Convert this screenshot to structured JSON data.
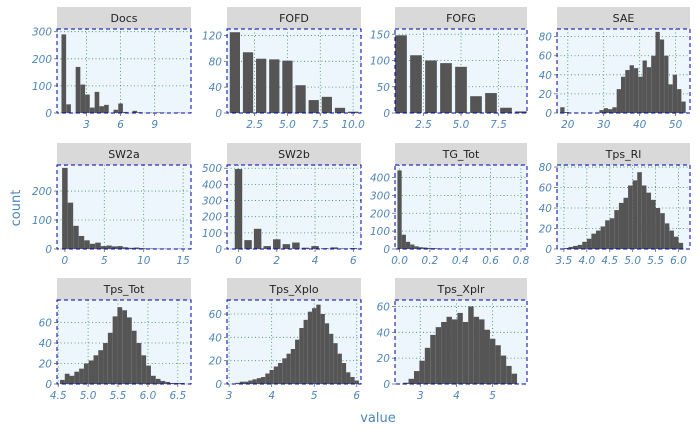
{
  "chart_data": {
    "type": "bar",
    "subtype": "faceted-histogram",
    "xlabel": "value",
    "ylabel": "count",
    "grid": "dotted",
    "colors": {
      "bar": "#555555",
      "panel_bg": "#eef6fd",
      "panel_border": "#0000b0",
      "strip_bg": "#d9d9d9",
      "grid": "#3a8a5a",
      "axis_text": "#4f86b8"
    },
    "panels": [
      {
        "name": "Docs",
        "xlim": [
          0.4,
          12.2
        ],
        "ylim": [
          0,
          310
        ],
        "xticks": [
          {
            "value": 3,
            "label": "3"
          },
          {
            "value": 6,
            "label": "6"
          },
          {
            "value": 9,
            "label": "9"
          }
        ],
        "yticks": [
          {
            "value": 0,
            "label": "0"
          },
          {
            "value": 100,
            "label": "100"
          },
          {
            "value": 200,
            "label": "200"
          },
          {
            "value": 300,
            "label": "300"
          }
        ],
        "x": [
          1.0,
          1.42,
          2.25,
          2.67,
          3.08,
          3.5,
          3.92,
          4.33,
          4.75,
          5.58,
          6.0,
          6.42,
          7.25,
          7.67,
          8.5,
          9.33,
          9.75,
          11.0
        ],
        "counts": [
          290,
          32,
          170,
          105,
          68,
          20,
          78,
          25,
          30,
          12,
          35,
          4,
          8,
          3,
          2,
          2,
          1,
          2
        ]
      },
      {
        "name": "FOFD",
        "xlim": [
          0.4,
          10.6
        ],
        "ylim": [
          0,
          130
        ],
        "xticks": [
          {
            "value": 2.5,
            "label": "2.5"
          },
          {
            "value": 5.0,
            "label": "5.0"
          },
          {
            "value": 7.5,
            "label": "7.5"
          },
          {
            "value": 10.0,
            "label": "10.0"
          }
        ],
        "yticks": [
          {
            "value": 0,
            "label": "0"
          },
          {
            "value": 40,
            "label": "40"
          },
          {
            "value": 80,
            "label": "80"
          },
          {
            "value": 120,
            "label": "120"
          }
        ],
        "x": [
          1,
          2,
          3,
          4,
          5,
          6,
          7,
          8,
          9,
          10
        ],
        "counts": [
          125,
          94,
          84,
          83,
          81,
          43,
          20,
          25,
          8,
          2
        ]
      },
      {
        "name": "FOFG",
        "xlim": [
          0.6,
          9.4
        ],
        "ylim": [
          0,
          160
        ],
        "xticks": [
          {
            "value": 2.5,
            "label": "2.5"
          },
          {
            "value": 5.0,
            "label": "5.0"
          },
          {
            "value": 7.5,
            "label": "7.5"
          }
        ],
        "yticks": [
          {
            "value": 0,
            "label": "0"
          },
          {
            "value": 50,
            "label": "50"
          },
          {
            "value": 100,
            "label": "100"
          },
          {
            "value": 150,
            "label": "150"
          }
        ],
        "x": [
          1,
          2,
          3,
          4,
          5,
          6,
          7,
          8,
          9
        ],
        "counts": [
          148,
          110,
          100,
          95,
          88,
          32,
          38,
          10,
          3
        ]
      },
      {
        "name": "SAE",
        "xlim": [
          17,
          54
        ],
        "ylim": [
          0,
          88
        ],
        "xticks": [
          {
            "value": 20,
            "label": "20"
          },
          {
            "value": 30,
            "label": "30"
          },
          {
            "value": 40,
            "label": "40"
          },
          {
            "value": 50,
            "label": "50"
          }
        ],
        "yticks": [
          {
            "value": 0,
            "label": "0"
          },
          {
            "value": 20,
            "label": "20"
          },
          {
            "value": 40,
            "label": "40"
          },
          {
            "value": 60,
            "label": "60"
          },
          {
            "value": 80,
            "label": "80"
          }
        ],
        "x": [
          18.5,
          19.7,
          29.4,
          30.6,
          31.8,
          33.0,
          34.2,
          35.4,
          36.6,
          37.8,
          39.0,
          40.2,
          41.4,
          42.6,
          43.8,
          45.0,
          46.2,
          47.4,
          48.6,
          49.8,
          51.0,
          52.2
        ],
        "counts": [
          6,
          1,
          3,
          5,
          4,
          6,
          25,
          38,
          45,
          50,
          47,
          38,
          55,
          48,
          60,
          85,
          77,
          60,
          30,
          40,
          25,
          12
        ]
      },
      {
        "name": "SW2a",
        "xlim": [
          -1,
          16
        ],
        "ylim": [
          0,
          290
        ],
        "xticks": [
          {
            "value": 0,
            "label": "0"
          },
          {
            "value": 5,
            "label": "5"
          },
          {
            "value": 10,
            "label": "10"
          },
          {
            "value": 15,
            "label": "15"
          }
        ],
        "yticks": [
          {
            "value": 0,
            "label": "0"
          },
          {
            "value": 100,
            "label": "100"
          },
          {
            "value": 200,
            "label": "200"
          }
        ],
        "x": [
          0.0,
          0.7,
          1.4,
          2.1,
          2.8,
          3.5,
          4.2,
          4.9,
          5.6,
          6.3,
          7.0,
          7.7,
          8.4,
          9.1,
          9.8,
          10.5,
          11.2,
          11.9,
          12.6,
          14.7
        ],
        "counts": [
          280,
          160,
          80,
          45,
          30,
          18,
          22,
          10,
          12,
          9,
          10,
          6,
          4,
          5,
          3,
          2,
          2,
          1,
          1,
          1
        ]
      },
      {
        "name": "SW2b",
        "xlim": [
          -0.6,
          6.4
        ],
        "ylim": [
          0,
          520
        ],
        "xticks": [
          {
            "value": 0,
            "label": "0"
          },
          {
            "value": 2,
            "label": "2"
          },
          {
            "value": 4,
            "label": "4"
          },
          {
            "value": 6,
            "label": "6"
          }
        ],
        "yticks": [
          {
            "value": 0,
            "label": "0"
          },
          {
            "value": 100,
            "label": "100"
          },
          {
            "value": 200,
            "label": "200"
          },
          {
            "value": 300,
            "label": "300"
          },
          {
            "value": 400,
            "label": "400"
          },
          {
            "value": 500,
            "label": "500"
          }
        ],
        "x": [
          0.0,
          0.5,
          1.0,
          1.5,
          2.0,
          2.5,
          3.0,
          3.5,
          4.0,
          4.5,
          5.0,
          5.5,
          6.0
        ],
        "counts": [
          495,
          55,
          125,
          18,
          60,
          30,
          40,
          8,
          18,
          5,
          10,
          4,
          6
        ]
      },
      {
        "name": "TG_Tot",
        "xlim": [
          -0.03,
          0.84
        ],
        "ylim": [
          0,
          470
        ],
        "xticks": [
          {
            "value": 0.0,
            "label": "0.0"
          },
          {
            "value": 0.2,
            "label": "0.2"
          },
          {
            "value": 0.4,
            "label": "0.4"
          },
          {
            "value": 0.6,
            "label": "0.6"
          },
          {
            "value": 0.8,
            "label": "0.8"
          }
        ],
        "yticks": [
          {
            "value": 0,
            "label": "0"
          },
          {
            "value": 100,
            "label": "100"
          },
          {
            "value": 200,
            "label": "200"
          },
          {
            "value": 300,
            "label": "300"
          },
          {
            "value": 400,
            "label": "400"
          }
        ],
        "x": [
          0.0,
          0.028,
          0.056,
          0.084,
          0.112,
          0.14,
          0.168,
          0.196,
          0.224,
          0.252,
          0.28,
          0.31,
          0.36,
          0.42,
          0.48,
          0.55,
          0.62,
          0.7,
          0.8
        ],
        "counts": [
          440,
          80,
          40,
          25,
          15,
          10,
          8,
          6,
          5,
          4,
          3,
          3,
          2,
          2,
          1,
          1,
          1,
          1,
          1
        ]
      },
      {
        "name": "Tps_Rl",
        "xlim": [
          3.35,
          6.25
        ],
        "ylim": [
          0,
          82
        ],
        "xticks": [
          {
            "value": 3.5,
            "label": "3.5"
          },
          {
            "value": 4.0,
            "label": "4.0"
          },
          {
            "value": 4.5,
            "label": "4.5"
          },
          {
            "value": 5.0,
            "label": "5.0"
          },
          {
            "value": 5.5,
            "label": "5.5"
          },
          {
            "value": 6.0,
            "label": "6.0"
          }
        ],
        "yticks": [
          {
            "value": 0,
            "label": "0"
          },
          {
            "value": 20,
            "label": "20"
          },
          {
            "value": 40,
            "label": "40"
          },
          {
            "value": 60,
            "label": "60"
          },
          {
            "value": 80,
            "label": "80"
          }
        ],
        "x": [
          3.55,
          3.65,
          3.75,
          3.85,
          3.95,
          4.05,
          4.15,
          4.25,
          4.35,
          4.45,
          4.55,
          4.65,
          4.75,
          4.85,
          4.95,
          5.05,
          5.15,
          5.25,
          5.35,
          5.45,
          5.55,
          5.65,
          5.75,
          5.85,
          5.95,
          6.05
        ],
        "counts": [
          1,
          2,
          3,
          4,
          7,
          10,
          15,
          18,
          22,
          28,
          30,
          38,
          45,
          50,
          62,
          67,
          75,
          62,
          55,
          48,
          40,
          35,
          25,
          18,
          12,
          6
        ]
      },
      {
        "name": "Tps_Tot",
        "xlim": [
          4.48,
          6.72
        ],
        "ylim": [
          0,
          82
        ],
        "xticks": [
          {
            "value": 4.5,
            "label": "4.5"
          },
          {
            "value": 5.0,
            "label": "5.0"
          },
          {
            "value": 5.5,
            "label": "5.5"
          },
          {
            "value": 6.0,
            "label": "6.0"
          },
          {
            "value": 6.5,
            "label": "6.5"
          }
        ],
        "yticks": [
          {
            "value": 0,
            "label": "0"
          },
          {
            "value": 20,
            "label": "20"
          },
          {
            "value": 40,
            "label": "40"
          },
          {
            "value": 60,
            "label": "60"
          }
        ],
        "x": [
          4.57,
          4.65,
          4.73,
          4.81,
          4.89,
          4.97,
          5.05,
          5.13,
          5.21,
          5.29,
          5.37,
          5.45,
          5.53,
          5.61,
          5.69,
          5.77,
          5.85,
          5.93,
          6.01,
          6.09,
          6.17,
          6.25,
          6.33,
          6.41,
          6.49,
          6.57
        ],
        "counts": [
          4,
          10,
          8,
          12,
          15,
          20,
          23,
          28,
          33,
          40,
          50,
          66,
          75,
          72,
          65,
          52,
          40,
          28,
          18,
          8,
          5,
          3,
          2,
          1,
          1,
          1
        ]
      },
      {
        "name": "Tps_Xplo",
        "xlim": [
          2.95,
          6.1
        ],
        "ylim": [
          0,
          72
        ],
        "xticks": [
          {
            "value": 3,
            "label": "3"
          },
          {
            "value": 4,
            "label": "4"
          },
          {
            "value": 5,
            "label": "5"
          },
          {
            "value": 6,
            "label": "6"
          }
        ],
        "yticks": [
          {
            "value": 0,
            "label": "0"
          },
          {
            "value": 20,
            "label": "20"
          },
          {
            "value": 40,
            "label": "40"
          },
          {
            "value": 60,
            "label": "60"
          }
        ],
        "x": [
          3.2,
          3.3,
          3.4,
          3.5,
          3.6,
          3.7,
          3.8,
          3.9,
          4.0,
          4.1,
          4.2,
          4.3,
          4.4,
          4.5,
          4.6,
          4.7,
          4.8,
          4.9,
          5.0,
          5.1,
          5.2,
          5.3,
          5.4,
          5.5,
          5.6,
          5.7,
          5.8,
          5.9,
          6.0
        ],
        "counts": [
          1,
          2,
          2,
          3,
          4,
          5,
          6,
          9,
          12,
          15,
          18,
          22,
          26,
          30,
          38,
          48,
          55,
          62,
          65,
          68,
          60,
          52,
          43,
          35,
          26,
          18,
          10,
          6,
          3
        ]
      },
      {
        "name": "Tps_Xplr",
        "xlim": [
          2.3,
          5.95
        ],
        "ylim": [
          0,
          65
        ],
        "xticks": [
          {
            "value": 3,
            "label": "3"
          },
          {
            "value": 4,
            "label": "4"
          },
          {
            "value": 5,
            "label": "5"
          }
        ],
        "yticks": [
          {
            "value": 0,
            "label": "0"
          },
          {
            "value": 20,
            "label": "20"
          },
          {
            "value": 40,
            "label": "40"
          },
          {
            "value": 60,
            "label": "60"
          }
        ],
        "x": [
          2.6,
          2.75,
          2.9,
          3.05,
          3.2,
          3.35,
          3.5,
          3.65,
          3.8,
          3.95,
          4.1,
          4.25,
          4.4,
          4.55,
          4.7,
          4.85,
          5.0,
          5.15,
          5.3,
          5.45,
          5.6
        ],
        "counts": [
          1,
          4,
          10,
          18,
          28,
          38,
          44,
          48,
          52,
          50,
          55,
          48,
          60,
          52,
          50,
          42,
          35,
          30,
          22,
          14,
          8
        ]
      }
    ]
  }
}
